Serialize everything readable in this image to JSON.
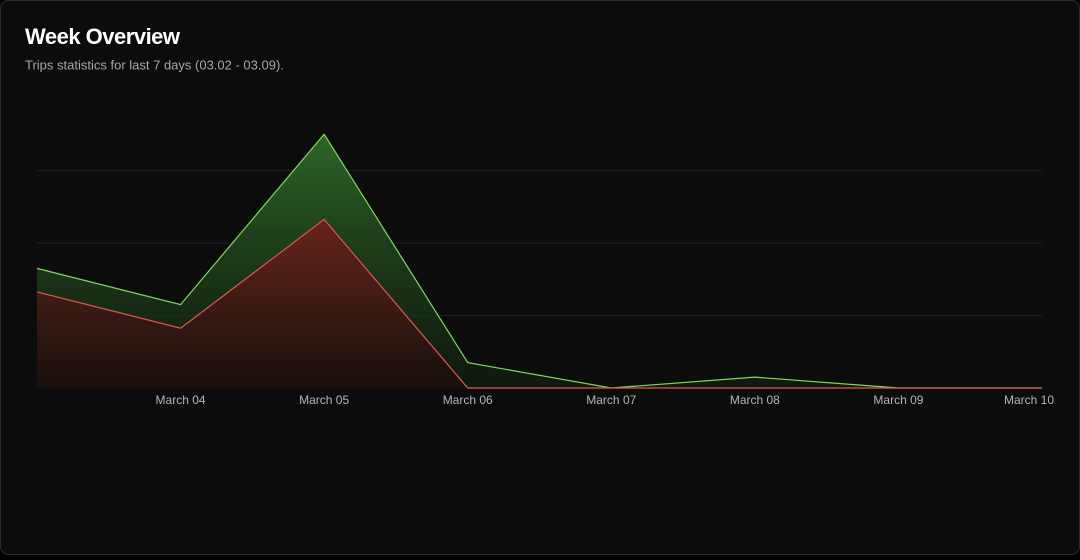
{
  "chart_data": {
    "type": "area",
    "title": "Week Overview",
    "subtitle": "Trips statistics for last 7 days (03.02 - 03.09).",
    "categories": [
      null,
      "March 04",
      "March 05",
      "March 06",
      "March 07",
      "March 08",
      "March 09",
      "March 10"
    ],
    "series": [
      {
        "color": "#7fd95f",
        "values": [
          3.3,
          2.3,
          7.0,
          0.7,
          0,
          0.3,
          0,
          0
        ]
      },
      {
        "color": "#e0584c",
        "values": [
          2.65,
          1.65,
          4.65,
          0,
          0,
          0,
          0,
          0
        ]
      }
    ],
    "ylim": [
      0,
      7
    ],
    "yticks": [
      2,
      4,
      6
    ],
    "grid": true
  }
}
